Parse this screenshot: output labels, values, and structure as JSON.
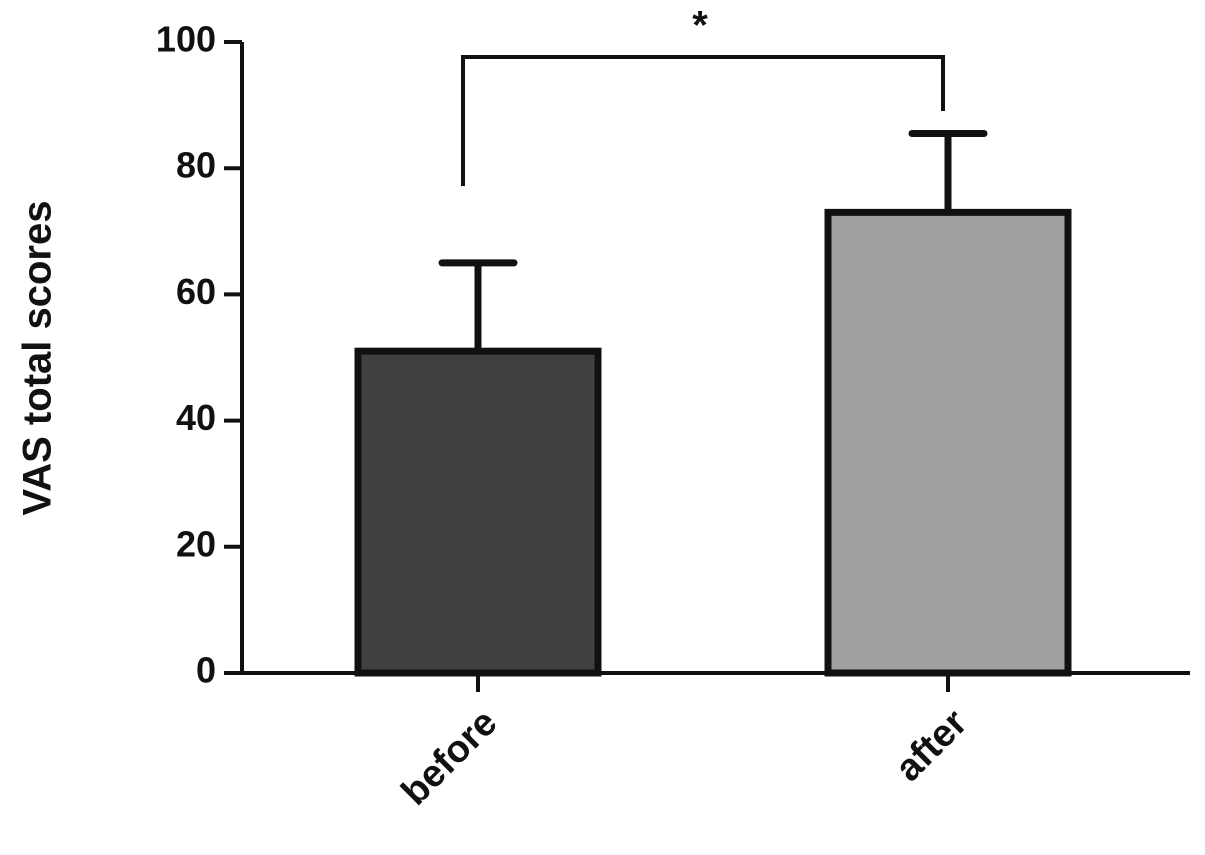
{
  "chart_data": {
    "type": "bar",
    "ylabel": "VAS total scores",
    "annotation": "*",
    "categories": [
      "before",
      "after"
    ],
    "values": [
      51,
      73
    ],
    "errors": [
      14,
      12.5
    ],
    "colors": [
      "#404040",
      "#a0a0a0"
    ],
    "ylim": [
      0,
      100
    ],
    "yticks": [
      0,
      20,
      40,
      60,
      80,
      100
    ]
  }
}
